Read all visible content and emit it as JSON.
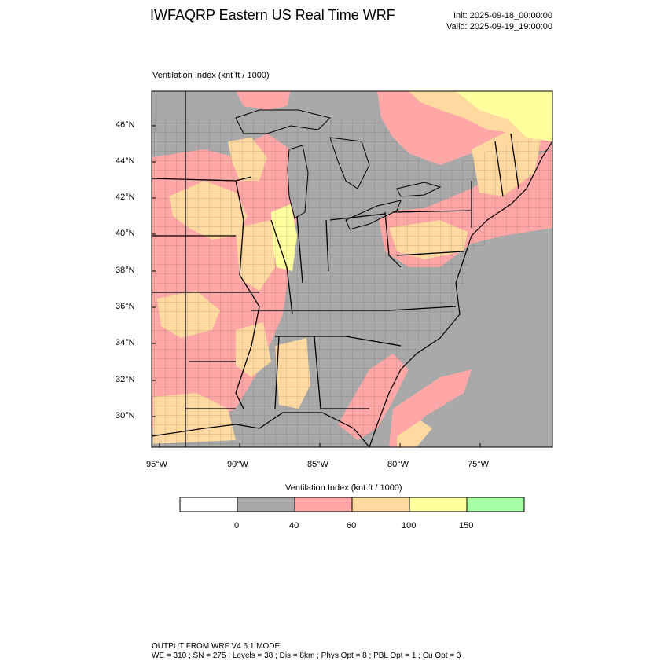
{
  "header": {
    "title": "IWFAQRP Eastern US Real Time WRF",
    "init": "Init: 2025-09-18_00:00:00",
    "valid": "Valid: 2025-09-19_19:00:00"
  },
  "map": {
    "field_label": "Ventilation Index   (knt ft / 1000)",
    "lat_labels": [
      "46°N",
      "44°N",
      "42°N",
      "40°N",
      "38°N",
      "36°N",
      "34°N",
      "32°N",
      "30°N"
    ],
    "lon_labels": [
      "95°W",
      "90°W",
      "85°W",
      "80°W",
      "75°W"
    ],
    "colors": {
      "land_gray": "#a9a9a9",
      "water_gray": "#a9a9a9",
      "pink": "#ffa6a6",
      "peach": "#ffd9a0",
      "yellow": "#ffff9e",
      "green": "#a6ffa6"
    }
  },
  "legend": {
    "title": "Ventilation Index  (knt ft / 1000)",
    "bins": [
      {
        "color": "#ffffff"
      },
      {
        "color": "#a9a9a9"
      },
      {
        "color": "#ffa6a6"
      },
      {
        "color": "#ffd9a0"
      },
      {
        "color": "#ffff9e"
      },
      {
        "color": "#a6ffa6"
      }
    ],
    "ticks": [
      "0",
      "40",
      "60",
      "100",
      "150"
    ]
  },
  "footer": {
    "line1": "OUTPUT FROM WRF V4.6.1 MODEL",
    "line2": "WE = 310 ; SN = 275 ; Levels = 38 ; Dis = 8km ; Phys Opt = 8 ; PBL Opt = 1 ; Cu Opt = 3"
  }
}
